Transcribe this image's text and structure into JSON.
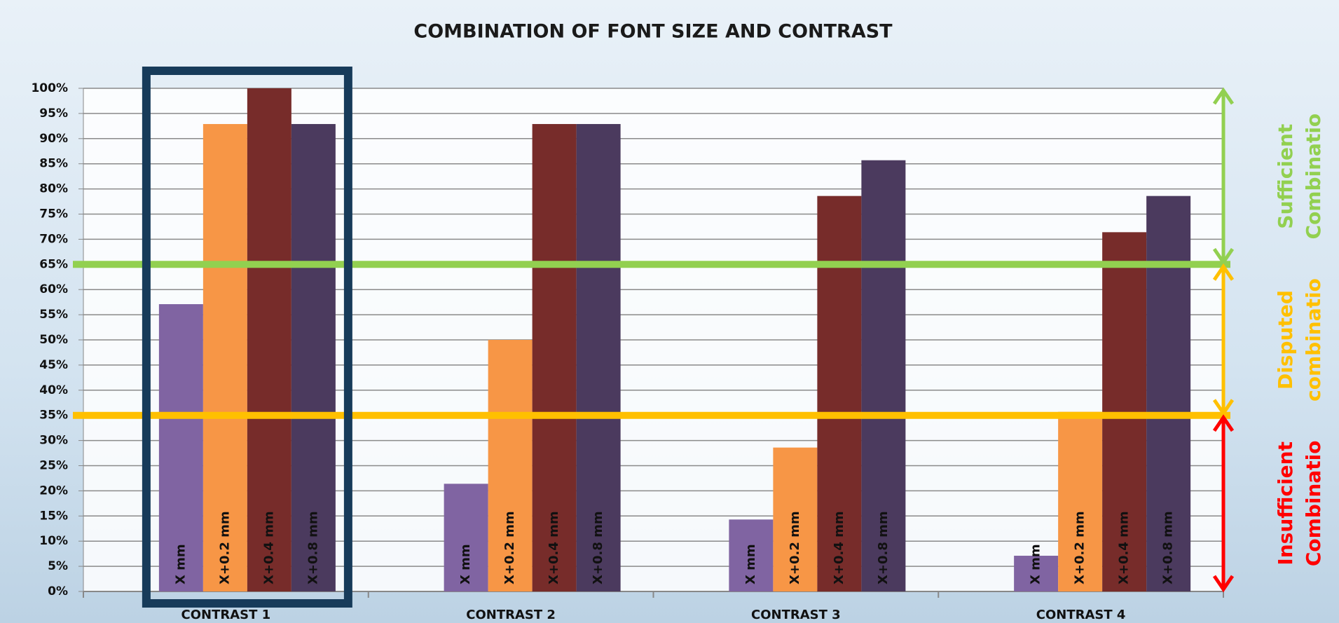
{
  "chart_data": {
    "type": "bar",
    "title": "COMBINATION OF FONT SIZE AND CONTRAST",
    "categories": [
      "CONTRAST 1",
      "CONTRAST 2",
      "CONTRAST 3",
      "CONTRAST 4"
    ],
    "series": [
      {
        "name": "X mm",
        "color": "#8064a2",
        "values": [
          57.1,
          21.4,
          14.3,
          7.1
        ]
      },
      {
        "name": "X+0.2 mm",
        "color": "#f79646",
        "values": [
          92.9,
          50,
          28.6,
          35.7
        ]
      },
      {
        "name": "X+0.4 mm",
        "color": "#772c2a",
        "values": [
          100,
          92.9,
          78.6,
          71.4
        ]
      },
      {
        "name": "X+0.8 mm",
        "color": "#4b3a5e",
        "values": [
          92.9,
          92.9,
          85.7,
          78.6
        ]
      }
    ],
    "ylim": [
      0,
      100
    ],
    "yticks": [
      {
        "value": 0,
        "label": "0%"
      },
      {
        "value": 5,
        "label": "5%"
      },
      {
        "value": 10,
        "label": "10%"
      },
      {
        "value": 15,
        "label": "15%"
      },
      {
        "value": 20,
        "label": "20%"
      },
      {
        "value": 25,
        "label": "25%"
      },
      {
        "value": 30,
        "label": "30%"
      },
      {
        "value": 35,
        "label": "35%"
      },
      {
        "value": 40,
        "label": "40%"
      },
      {
        "value": 45,
        "label": "45%"
      },
      {
        "value": 50,
        "label": "50%"
      },
      {
        "value": 55,
        "label": "55%"
      },
      {
        "value": 60,
        "label": "60%"
      },
      {
        "value": 65,
        "label": "65%"
      },
      {
        "value": 70,
        "label": "70%"
      },
      {
        "value": 75,
        "label": "75%"
      },
      {
        "value": 80,
        "label": "80%"
      },
      {
        "value": 85,
        "label": "85%"
      },
      {
        "value": 90,
        "label": "90%"
      },
      {
        "value": 95,
        "label": "95%"
      },
      {
        "value": 100,
        "label": "100%"
      }
    ],
    "grid": true,
    "highlight_category_index": 0,
    "thresholds": [
      {
        "value": 65,
        "color": "#92d050"
      },
      {
        "value": 35,
        "color": "#ffc000"
      }
    ],
    "zones": [
      {
        "label": [
          "Sufficient",
          "Combinatio"
        ],
        "from": 65,
        "to": 100,
        "color": "#92d050"
      },
      {
        "label": [
          "Disputed",
          "combinatio"
        ],
        "from": 35,
        "to": 65,
        "color": "#ffc000"
      },
      {
        "label": [
          "Insufficient",
          "Combinatio"
        ],
        "from": 0,
        "to": 35,
        "color": "#ff0000"
      }
    ]
  }
}
